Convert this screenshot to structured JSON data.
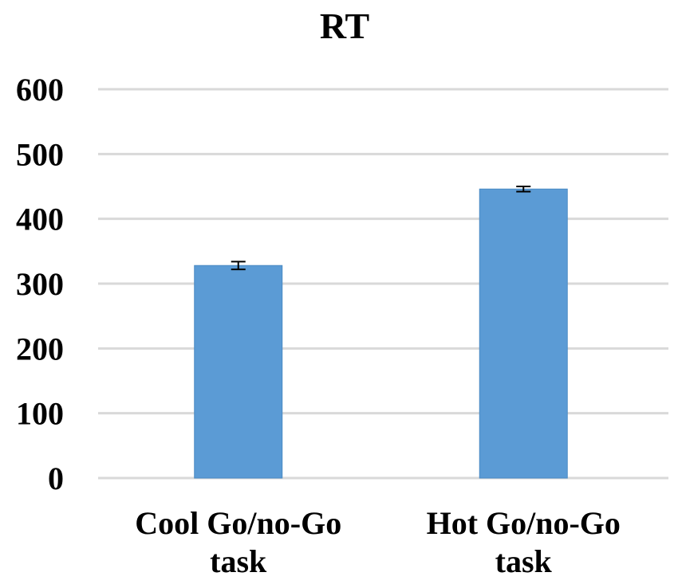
{
  "chart_data": {
    "type": "bar",
    "title": "RT",
    "xlabel": "",
    "ylabel": "",
    "categories": [
      [
        "Cool Go/no-Go",
        "task"
      ],
      [
        "Hot Go/no-Go",
        "task"
      ]
    ],
    "values": [
      328,
      446
    ],
    "error": [
      6,
      4
    ],
    "ylim": [
      0,
      600
    ],
    "yticks": [
      0,
      100,
      200,
      300,
      400,
      500,
      600
    ],
    "grid": true,
    "colors": {
      "bar": "#5b9bd5",
      "grid": "#d9d9d9"
    }
  }
}
